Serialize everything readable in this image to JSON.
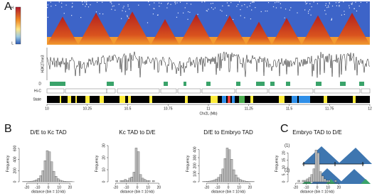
{
  "panels": {
    "a": "A",
    "b": "B",
    "c": "C"
  },
  "panel_a": {
    "scale_high": "H",
    "scale_low": "L",
    "track_label": "H3K27me3",
    "rows": [
      "D",
      "Hi-C",
      "State"
    ],
    "xlabel": "Chr2L (Mb)",
    "xlim": [
      10,
      12
    ],
    "xticks": [
      10,
      10.25,
      10.5,
      10.75,
      11,
      11.25,
      11.5,
      11.75,
      12
    ]
  },
  "panel_b": {
    "histograms": [
      {
        "title": "D/E to Kc TAD",
        "ylabel": "Frequency",
        "xlabel": "distance (bin = 10 kb)",
        "xlim": [
          -25,
          25
        ],
        "xticks": [
          -20,
          -10,
          0,
          10,
          20
        ],
        "ylim": [
          0,
          650
        ],
        "yticks": [
          0,
          200,
          400,
          600
        ],
        "bins": [
          -24,
          -22,
          -20,
          -18,
          -16,
          -14,
          -12,
          -10,
          -8,
          -6,
          -4,
          -2,
          0,
          2,
          4,
          6,
          8,
          10,
          12,
          14,
          16,
          18,
          20,
          22,
          24
        ],
        "counts": [
          2,
          3,
          5,
          8,
          12,
          20,
          35,
          60,
          110,
          200,
          380,
          560,
          540,
          360,
          190,
          100,
          55,
          30,
          18,
          10,
          6,
          4,
          2,
          1
        ]
      },
      {
        "title": "Kc TAD to D/E",
        "ylabel": "Frequency",
        "xlabel": "distance (bin = 10 kb)",
        "xlim": [
          -25,
          25
        ],
        "xticks": [
          -20,
          -10,
          0,
          10,
          20
        ],
        "ylim": [
          0,
          30
        ],
        "yticks": [
          0,
          10,
          20,
          30
        ],
        "bins": [
          -24,
          -22,
          -20,
          -18,
          -16,
          -14,
          -12,
          -10,
          -8,
          -6,
          -4,
          -2,
          0,
          2,
          4,
          6,
          8,
          10,
          12,
          14,
          16,
          18,
          20,
          22,
          24
        ],
        "counts": [
          0,
          0,
          1,
          0,
          1,
          1,
          2,
          1,
          3,
          4,
          8,
          28,
          25,
          6,
          3,
          2,
          1,
          1,
          0,
          1,
          0,
          0,
          0,
          0
        ]
      },
      {
        "title": "D/E to Embryo TAD",
        "ylabel": "Frequency",
        "xlabel": "distance (bin = 10 kb)",
        "xlim": [
          -25,
          25
        ],
        "xticks": [
          -20,
          -10,
          0,
          10,
          20
        ],
        "ylim": [
          0,
          450
        ],
        "yticks": [
          0,
          100,
          200,
          300,
          400
        ],
        "bins": [
          -24,
          -22,
          -20,
          -18,
          -16,
          -14,
          -12,
          -10,
          -8,
          -6,
          -4,
          -2,
          0,
          2,
          4,
          6,
          8,
          10,
          12,
          14,
          16,
          18,
          20,
          22,
          24
        ],
        "counts": [
          3,
          4,
          6,
          9,
          14,
          22,
          35,
          55,
          90,
          160,
          290,
          420,
          400,
          280,
          150,
          85,
          50,
          30,
          18,
          11,
          7,
          4,
          3,
          2
        ]
      },
      {
        "title": "Embryo TAD to D/E",
        "ylabel": "Frequency",
        "xlabel": "distance (bin = 10 kb)",
        "xlim": [
          -25,
          25
        ],
        "xticks": [
          -20,
          -10,
          0,
          10,
          20
        ],
        "ylim": [
          0,
          25
        ],
        "yticks": [
          0,
          5,
          10,
          15,
          20
        ],
        "bins": [
          -24,
          -22,
          -20,
          -18,
          -16,
          -14,
          -12,
          -10,
          -8,
          -6,
          -4,
          -2,
          0,
          2,
          4,
          6,
          8,
          10,
          12,
          14,
          16,
          18,
          20,
          22,
          24
        ],
        "counts": [
          0,
          0,
          0,
          1,
          0,
          1,
          1,
          2,
          3,
          5,
          9,
          22,
          20,
          7,
          4,
          2,
          1,
          1,
          0,
          0,
          1,
          0,
          0,
          0
        ]
      }
    ]
  },
  "panel_c": {
    "labels": [
      "(1)",
      "(2)"
    ]
  }
}
